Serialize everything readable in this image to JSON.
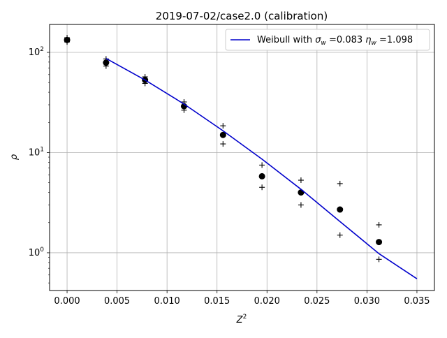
{
  "chart_data": {
    "type": "scatter",
    "title": "2019-07-02/case2.0 (calibration)",
    "xlabel": "Z",
    "xlabel_sup": "2",
    "ylabel": "ρ",
    "x_scale": "linear",
    "y_scale": "log",
    "xlim": [
      -0.00175,
      0.03675
    ],
    "ylim": [
      0.42,
      190
    ],
    "x_ticks": [
      0.0,
      0.005,
      0.01,
      0.015,
      0.02,
      0.025,
      0.03,
      0.035
    ],
    "x_tick_labels": [
      "0.000",
      "0.005",
      "0.010",
      "0.015",
      "0.020",
      "0.025",
      "0.030",
      "0.035"
    ],
    "y_ticks": [
      1,
      10,
      100
    ],
    "y_tick_labels": [
      {
        "base": "10",
        "exp": "0"
      },
      {
        "base": "10",
        "exp": "1"
      },
      {
        "base": "10",
        "exp": "2"
      }
    ],
    "grid": true,
    "legend_position": "top-right",
    "series": [
      {
        "marker": "dot",
        "color": "#000000",
        "x": [
          0.0,
          0.0039,
          0.0078,
          0.0117,
          0.0156,
          0.0195,
          0.0234,
          0.0273,
          0.0312
        ],
        "y": [
          133,
          79,
          53,
          29,
          15,
          5.8,
          4.0,
          2.7,
          1.28
        ]
      },
      {
        "marker": "plus-upper",
        "color": "#000000",
        "x": [
          0.0,
          0.0039,
          0.0078,
          0.0117,
          0.0156,
          0.0195,
          0.0234,
          0.0273,
          0.0312
        ],
        "y": [
          140,
          86,
          57,
          32,
          18.5,
          7.5,
          5.3,
          4.9,
          1.9
        ]
      },
      {
        "marker": "plus-lower",
        "color": "#000000",
        "x": [
          0.0,
          0.0039,
          0.0078,
          0.0117,
          0.0156,
          0.0195,
          0.0234,
          0.0273,
          0.0312
        ],
        "y": [
          127,
          73,
          49,
          26.5,
          12.2,
          4.5,
          3.0,
          1.5,
          0.86
        ]
      },
      {
        "marker": "line",
        "color": "#0000cc",
        "legend": {
          "prefix": "Weibull with ",
          "sigma_symbol": "σ",
          "sigma_sub": "w",
          "sigma_value": " =0.083 ",
          "eta_symbol": "η",
          "eta_sub": "w",
          "eta_value": " =1.098"
        },
        "x": [
          0.0039,
          0.0078,
          0.0117,
          0.0156,
          0.0195,
          0.0234,
          0.0273,
          0.0312,
          0.035
        ],
        "y": [
          87,
          53,
          30.5,
          16.5,
          8.6,
          4.3,
          2.05,
          0.98,
          0.55
        ]
      }
    ]
  }
}
